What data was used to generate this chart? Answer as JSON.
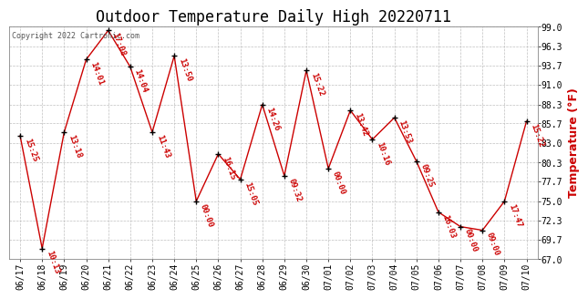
{
  "title": "Outdoor Temperature Daily High 20220711",
  "ylabel": "Temperature (°F)",
  "copyright": "Copyright 2022 Cartronic.com",
  "background_color": "#ffffff",
  "line_color": "#cc0000",
  "marker_color": "#000000",
  "grid_color": "#c0c0c0",
  "dates": [
    "06/17",
    "06/18",
    "06/19",
    "06/20",
    "06/21",
    "06/22",
    "06/23",
    "06/24",
    "06/25",
    "06/26",
    "06/27",
    "06/28",
    "06/29",
    "06/30",
    "07/01",
    "07/02",
    "07/03",
    "07/04",
    "07/05",
    "07/06",
    "07/07",
    "07/08",
    "07/09",
    "07/10"
  ],
  "temps": [
    84.0,
    68.5,
    84.5,
    94.5,
    98.5,
    93.5,
    84.5,
    95.0,
    75.0,
    81.5,
    78.0,
    88.3,
    78.5,
    93.0,
    79.5,
    87.5,
    83.5,
    86.5,
    80.5,
    73.5,
    71.5,
    71.0,
    75.0,
    86.0
  ],
  "times": [
    "15:25",
    "10:13",
    "13:18",
    "14:01",
    "17:08",
    "14:04",
    "11:43",
    "13:50",
    "00:00",
    "16:15",
    "15:05",
    "14:26",
    "09:32",
    "15:22",
    "00:00",
    "13:42",
    "10:16",
    "13:53",
    "09:25",
    "16:03",
    "00:00",
    "09:00",
    "17:47",
    "15:22"
  ],
  "ylim": [
    67.0,
    99.0
  ],
  "yticks": [
    67.0,
    69.7,
    72.3,
    75.0,
    77.7,
    80.3,
    83.0,
    85.7,
    88.3,
    91.0,
    93.7,
    96.3,
    99.0
  ],
  "title_fontsize": 12,
  "tick_fontsize": 7,
  "annotation_fontsize": 6.5,
  "ylabel_fontsize": 9
}
